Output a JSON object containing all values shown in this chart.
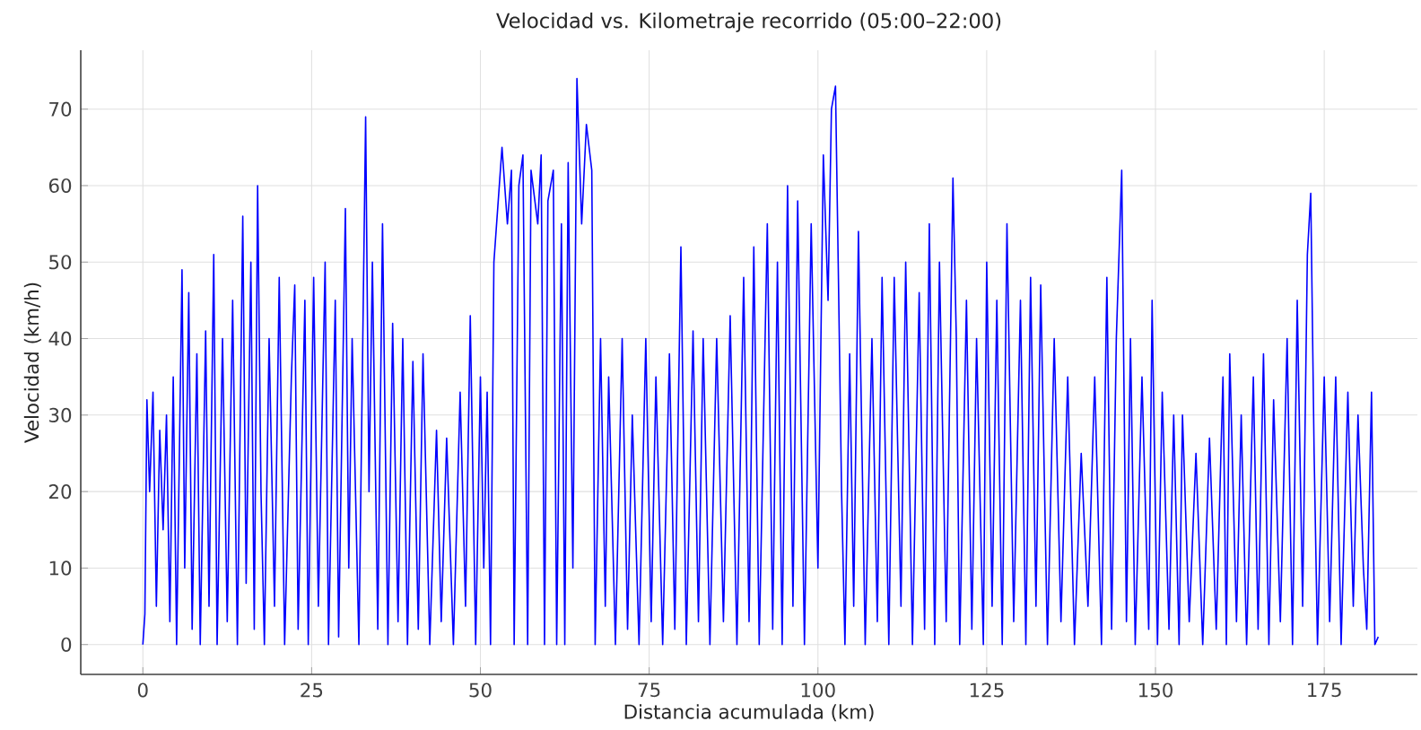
{
  "chart_data": {
    "type": "line",
    "title": "Velocidad vs. Kilometraje recorrido (05:00–22:00)",
    "xlabel": "Distancia acumulada (km)",
    "ylabel": "Velocidad (km/h)",
    "x": [
      0,
      0.3,
      0.6,
      1,
      1.5,
      2,
      2.5,
      3,
      3.5,
      4,
      4.5,
      5,
      5.8,
      6.2,
      6.8,
      7.3,
      8,
      8.5,
      9.3,
      9.8,
      10.5,
      11,
      11.8,
      12.5,
      13.3,
      14,
      14.8,
      15.3,
      16,
      16.5,
      17,
      17.5,
      18,
      18.7,
      19.5,
      20.2,
      21,
      22,
      22.5,
      23,
      24,
      24.5,
      25.3,
      26,
      27,
      27.5,
      28.5,
      29,
      30,
      30.5,
      31,
      32,
      33,
      33.5,
      34,
      34.8,
      35.5,
      36.3,
      37,
      37.8,
      38.5,
      39.2,
      40,
      40.8,
      41.5,
      42.5,
      43.5,
      44.2,
      45,
      46,
      47,
      47.8,
      48.5,
      49.3,
      50,
      50.5,
      51,
      51.5,
      52,
      52.8,
      53.2,
      54,
      54.6,
      55,
      55.7,
      56.3,
      57,
      57.5,
      58.5,
      59,
      59.5,
      60,
      60.8,
      61.3,
      62,
      62.5,
      63,
      63.7,
      64.3,
      65,
      65.7,
      66.5,
      67,
      67.8,
      68.5,
      69,
      70,
      71,
      71.8,
      72.5,
      73.5,
      74.5,
      75.3,
      76,
      77,
      78,
      78.8,
      79.7,
      80.5,
      81.5,
      82.3,
      83,
      84,
      85,
      86,
      87,
      88,
      89,
      89.8,
      90.5,
      91.3,
      92.5,
      93.3,
      94,
      94.7,
      95.5,
      96.3,
      97,
      98,
      99,
      100,
      100.8,
      101.5,
      102,
      102.6,
      103,
      103.5,
      104,
      104.7,
      105.3,
      106,
      107,
      108,
      108.8,
      109.5,
      110.5,
      111.3,
      112.3,
      113,
      114,
      115,
      115.8,
      116.5,
      117.3,
      118,
      119,
      120,
      120.5,
      121,
      122,
      122.8,
      123.5,
      124.5,
      125,
      125.8,
      126.5,
      127.3,
      128,
      129,
      130,
      130.8,
      131.5,
      132.3,
      133,
      134,
      135,
      136,
      137,
      138,
      139,
      140,
      141,
      142,
      142.8,
      143.5,
      144.2,
      145,
      145.7,
      146.3,
      147,
      148,
      149,
      149.5,
      150.3,
      151,
      152,
      152.7,
      153.5,
      154,
      155,
      156,
      157,
      158,
      159,
      160,
      160.5,
      161,
      162,
      162.7,
      163.5,
      164.5,
      165.2,
      166,
      166.8,
      167.5,
      168.5,
      169.5,
      170.3,
      171,
      171.8,
      172.5,
      173,
      173.5,
      174,
      175,
      175.8,
      176.7,
      177.5,
      178.5,
      179.3,
      180,
      180.8,
      181.3,
      182,
      182.5,
      183
    ],
    "series": [
      {
        "color": "#0000ff",
        "values": [
          0,
          4,
          32,
          20,
          33,
          5,
          28,
          15,
          30,
          3,
          35,
          0,
          49,
          10,
          46,
          2,
          38,
          0,
          41,
          5,
          51,
          0,
          40,
          3,
          45,
          0,
          56,
          8,
          50,
          2,
          60,
          20,
          0,
          40,
          5,
          48,
          0,
          35,
          47,
          2,
          45,
          0,
          48,
          5,
          50,
          0,
          45,
          1,
          57,
          10,
          40,
          0,
          69,
          20,
          50,
          2,
          55,
          0,
          42,
          3,
          40,
          0,
          37,
          2,
          38,
          0,
          28,
          3,
          27,
          0,
          33,
          5,
          43,
          0,
          35,
          10,
          33,
          0,
          50,
          60,
          65,
          55,
          62,
          0,
          60,
          64,
          0,
          62,
          55,
          64,
          0,
          58,
          62,
          0,
          55,
          0,
          63,
          10,
          74,
          55,
          68,
          62,
          0,
          40,
          5,
          35,
          0,
          40,
          2,
          30,
          0,
          40,
          3,
          35,
          0,
          38,
          2,
          52,
          0,
          41,
          3,
          40,
          0,
          40,
          3,
          43,
          0,
          48,
          3,
          52,
          0,
          55,
          2,
          50,
          0,
          60,
          5,
          58,
          0,
          55,
          10,
          64,
          45,
          70,
          73,
          50,
          20,
          0,
          38,
          5,
          54,
          0,
          40,
          3,
          48,
          0,
          48,
          5,
          50,
          0,
          46,
          2,
          55,
          0,
          50,
          3,
          61,
          40,
          0,
          45,
          2,
          40,
          0,
          50,
          5,
          45,
          0,
          55,
          3,
          45,
          0,
          48,
          5,
          47,
          0,
          40,
          3,
          35,
          0,
          25,
          5,
          35,
          0,
          48,
          2,
          40,
          62,
          3,
          40,
          0,
          35,
          2,
          45,
          0,
          33,
          2,
          30,
          0,
          30,
          3,
          25,
          0,
          27,
          2,
          35,
          0,
          38,
          3,
          30,
          0,
          35,
          2,
          38,
          0,
          32,
          3,
          40,
          0,
          45,
          5,
          51,
          59,
          25,
          0,
          35,
          3,
          35,
          0,
          33,
          5,
          30,
          10,
          2,
          33,
          0,
          1
        ]
      }
    ],
    "xlim": [
      -9.2,
      188.8
    ],
    "ylim": [
      -3.9,
      77.7
    ],
    "xticks": [
      0,
      25,
      50,
      75,
      100,
      125,
      150,
      175
    ],
    "yticks": [
      0,
      10,
      20,
      30,
      40,
      50,
      60,
      70
    ],
    "grid": true
  }
}
